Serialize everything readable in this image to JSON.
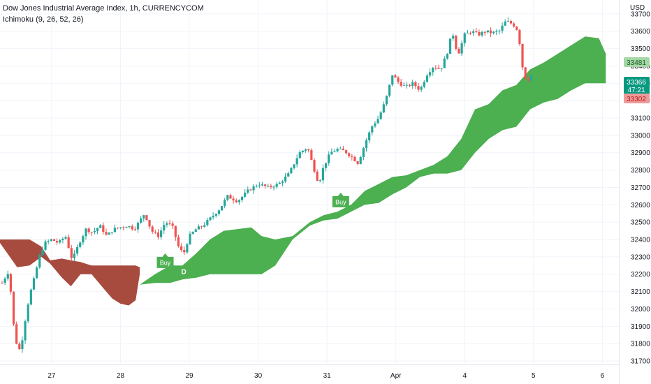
{
  "header": {
    "title": "Dow Jones Industrial Average Index, 1h, CURRENCYCOM",
    "indicator": "Ichimoku (9, 26, 52, 26)"
  },
  "axis": {
    "currency": "USD"
  },
  "price_tags": {
    "upper": "33481",
    "current_price": "33366",
    "countdown": "47:21",
    "lower": "33302"
  },
  "colors": {
    "up_candle": "#26a69a",
    "down_candle": "#ef5350",
    "bull_cloud": "#4caf50",
    "bear_cloud": "#a84b3f",
    "current_tag": "#089981",
    "upper_tag": "#a5d6a7",
    "lower_tag": "#ef9a9a"
  },
  "chart_data": {
    "type": "candlestick",
    "title": "Dow Jones Industrial Average Index, 1h, CURRENCYCOM",
    "ylim": [
      31680,
      33780
    ],
    "y_ticks": [
      31700,
      31800,
      31900,
      32000,
      32100,
      32200,
      32300,
      32400,
      32500,
      32600,
      32700,
      32800,
      32900,
      33000,
      33100,
      33200,
      33300,
      33400,
      33500,
      33600,
      33700
    ],
    "x_ticks": [
      {
        "label": "27",
        "pos": 1.0
      },
      {
        "label": "28",
        "pos": 2.0
      },
      {
        "label": "29",
        "pos": 3.0
      },
      {
        "label": "30",
        "pos": 4.0
      },
      {
        "label": "31",
        "pos": 5.0
      },
      {
        "label": "Apr",
        "pos": 6.0
      },
      {
        "label": "4",
        "pos": 7.0
      },
      {
        "label": "5",
        "pos": 8.0
      },
      {
        "label": "6",
        "pos": 9.0
      }
    ],
    "x_range": [
      0.25,
      9.25
    ],
    "price_path": [
      [
        0.28,
        32150
      ],
      [
        0.38,
        32220
      ],
      [
        0.45,
        31900
      ],
      [
        0.5,
        31780
      ],
      [
        0.55,
        31760
      ],
      [
        0.6,
        31900
      ],
      [
        0.68,
        32080
      ],
      [
        0.75,
        32180
      ],
      [
        0.82,
        32300
      ],
      [
        0.9,
        32380
      ],
      [
        1.0,
        32400
      ],
      [
        1.1,
        32380
      ],
      [
        1.2,
        32420
      ],
      [
        1.3,
        32280
      ],
      [
        1.4,
        32380
      ],
      [
        1.5,
        32460
      ],
      [
        1.6,
        32440
      ],
      [
        1.7,
        32480
      ],
      [
        1.8,
        32420
      ],
      [
        1.9,
        32460
      ],
      [
        2.0,
        32470
      ],
      [
        2.1,
        32480
      ],
      [
        2.2,
        32460
      ],
      [
        2.35,
        32550
      ],
      [
        2.45,
        32450
      ],
      [
        2.55,
        32420
      ],
      [
        2.65,
        32500
      ],
      [
        2.75,
        32480
      ],
      [
        2.85,
        32350
      ],
      [
        2.92,
        32320
      ],
      [
        3.0,
        32420
      ],
      [
        3.1,
        32460
      ],
      [
        3.2,
        32480
      ],
      [
        3.3,
        32520
      ],
      [
        3.45,
        32580
      ],
      [
        3.55,
        32650
      ],
      [
        3.7,
        32620
      ],
      [
        3.85,
        32680
      ],
      [
        4.0,
        32720
      ],
      [
        4.15,
        32700
      ],
      [
        4.3,
        32720
      ],
      [
        4.45,
        32780
      ],
      [
        4.6,
        32900
      ],
      [
        4.72,
        32930
      ],
      [
        4.8,
        32820
      ],
      [
        4.88,
        32720
      ],
      [
        4.95,
        32820
      ],
      [
        5.05,
        32900
      ],
      [
        5.15,
        32920
      ],
      [
        5.25,
        32910
      ],
      [
        5.35,
        32880
      ],
      [
        5.45,
        32840
      ],
      [
        5.55,
        32950
      ],
      [
        5.65,
        33050
      ],
      [
        5.75,
        33100
      ],
      [
        5.85,
        33200
      ],
      [
        5.95,
        33350
      ],
      [
        6.05,
        33300
      ],
      [
        6.15,
        33280
      ],
      [
        6.25,
        33300
      ],
      [
        6.35,
        33260
      ],
      [
        6.45,
        33350
      ],
      [
        6.55,
        33400
      ],
      [
        6.65,
        33380
      ],
      [
        6.75,
        33480
      ],
      [
        6.82,
        33600
      ],
      [
        6.9,
        33460
      ],
      [
        7.0,
        33580
      ],
      [
        7.1,
        33600
      ],
      [
        7.2,
        33580
      ],
      [
        7.3,
        33600
      ],
      [
        7.4,
        33590
      ],
      [
        7.5,
        33600
      ],
      [
        7.6,
        33660
      ],
      [
        7.7,
        33640
      ],
      [
        7.78,
        33600
      ],
      [
        7.82,
        33450
      ],
      [
        7.86,
        33340
      ],
      [
        7.92,
        33320
      ],
      [
        8.0,
        33366
      ]
    ],
    "bear_cloud": {
      "x": [
        0.25,
        0.5,
        0.68,
        0.85,
        0.98,
        1.15,
        1.28,
        1.42,
        1.58,
        1.75,
        1.88,
        2.0,
        2.12,
        2.22,
        2.28
      ],
      "upper": [
        32400,
        32400,
        32400,
        32360,
        32280,
        32290,
        32280,
        32270,
        32250,
        32250,
        32250,
        32250,
        32250,
        32250,
        32240
      ],
      "lower": [
        32380,
        32240,
        32250,
        32300,
        32260,
        32180,
        32130,
        32200,
        32200,
        32120,
        32060,
        32030,
        32020,
        32050,
        32200
      ]
    },
    "bull_cloud": {
      "x": [
        2.28,
        2.5,
        2.72,
        2.9,
        3.1,
        3.3,
        3.5,
        3.7,
        3.9,
        4.05,
        4.25,
        4.5,
        4.75,
        4.95,
        5.15,
        5.35,
        5.55,
        5.75,
        5.95,
        6.15,
        6.35,
        6.55,
        6.75,
        6.95,
        7.15,
        7.35,
        7.55,
        7.75,
        7.95,
        8.15,
        8.35,
        8.55,
        8.75,
        8.95,
        9.05
      ],
      "upper": [
        32140,
        32200,
        32250,
        32250,
        32320,
        32400,
        32450,
        32460,
        32470,
        32420,
        32400,
        32420,
        32500,
        32540,
        32560,
        32600,
        32680,
        32720,
        32760,
        32770,
        32800,
        32830,
        32880,
        32980,
        33150,
        33180,
        33260,
        33290,
        33380,
        33420,
        33470,
        33520,
        33570,
        33560,
        33470
      ],
      "lower": [
        32140,
        32150,
        32150,
        32170,
        32180,
        32200,
        32200,
        32200,
        32200,
        32200,
        32250,
        32400,
        32480,
        32510,
        32520,
        32560,
        32600,
        32610,
        32660,
        32700,
        32760,
        32780,
        32780,
        32800,
        32900,
        32980,
        33030,
        33050,
        33150,
        33190,
        33210,
        33260,
        33300,
        33300,
        33300
      ]
    },
    "signals": [
      {
        "label": "Buy",
        "x": 2.65,
        "y": 32300
      },
      {
        "label": "Buy",
        "x": 5.2,
        "y": 32650
      },
      {
        "label": "D",
        "x": 2.92,
        "y": 32250
      }
    ]
  }
}
